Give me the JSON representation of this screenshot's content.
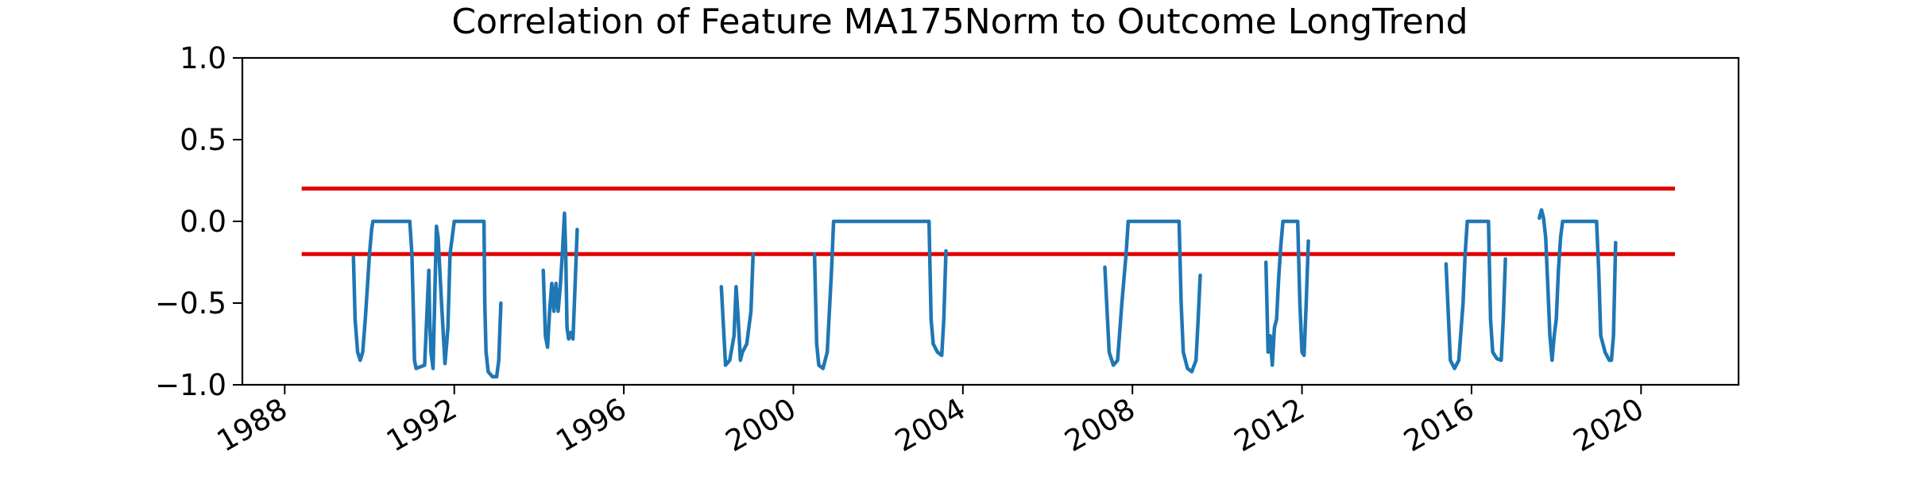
{
  "chart_data": {
    "type": "line",
    "title": "Correlation of Feature MA175Norm to Outcome LongTrend",
    "xlabel": "",
    "ylabel": "",
    "xlim": [
      1987.0,
      2022.3
    ],
    "ylim": [
      -1.0,
      1.0
    ],
    "grid": false,
    "legend": "none",
    "x_ticks": [
      1988,
      1992,
      1996,
      2000,
      2004,
      2008,
      2012,
      2016,
      2020
    ],
    "x_tick_labels": [
      "1988",
      "1992",
      "1996",
      "2000",
      "2004",
      "2008",
      "2012",
      "2016",
      "2020"
    ],
    "y_ticks": [
      -1.0,
      -0.5,
      0.0,
      0.5,
      1.0
    ],
    "y_tick_labels": [
      "−1.0",
      "−0.5",
      "0.0",
      "0.5",
      "1.0"
    ],
    "colors": {
      "series": "#1f77b4",
      "threshold": "#e00000",
      "axes": "#000000"
    },
    "reference_lines": [
      {
        "y": 0.2,
        "x_start": 1988.4,
        "x_end": 2020.8
      },
      {
        "y": -0.2,
        "x_start": 1988.4,
        "x_end": 2020.8
      }
    ],
    "series": [
      {
        "segments": [
          {
            "x": [
              1989.62,
              1989.66,
              1989.72,
              1989.78,
              1989.84,
              1989.9,
              1989.95,
              1990.0,
              1990.05,
              1990.08,
              1990.1,
              1990.2,
              1990.5,
              1990.8,
              1990.95,
              1991.0,
              1991.04,
              1991.06,
              1991.1,
              1991.3,
              1991.4,
              1991.42,
              1991.45,
              1991.5,
              1991.58,
              1991.62,
              1991.7,
              1991.78,
              1991.82,
              1991.85,
              1991.9,
              1992.0,
              1992.3,
              1992.6,
              1992.7,
              1992.72,
              1992.75,
              1992.8,
              1992.9,
              1993.0,
              1993.05,
              1993.1
            ],
            "y": [
              -0.22,
              -0.6,
              -0.8,
              -0.85,
              -0.8,
              -0.6,
              -0.4,
              -0.2,
              -0.05,
              0.0,
              0.0,
              0.0,
              0.0,
              0.0,
              0.0,
              -0.2,
              -0.6,
              -0.85,
              -0.9,
              -0.88,
              -0.3,
              -0.6,
              -0.8,
              -0.9,
              -0.03,
              -0.1,
              -0.5,
              -0.87,
              -0.75,
              -0.65,
              -0.2,
              0.0,
              0.0,
              0.0,
              0.0,
              -0.5,
              -0.8,
              -0.92,
              -0.95,
              -0.95,
              -0.85,
              -0.5
            ]
          },
          {
            "x": [
              1994.1,
              1994.15,
              1994.2,
              1994.25,
              1994.3,
              1994.35,
              1994.4,
              1994.45,
              1994.5,
              1994.55,
              1994.6,
              1994.63,
              1994.66,
              1994.7,
              1994.75,
              1994.8,
              1994.85,
              1994.9
            ],
            "y": [
              -0.3,
              -0.7,
              -0.77,
              -0.55,
              -0.38,
              -0.55,
              -0.38,
              -0.55,
              -0.4,
              -0.2,
              0.05,
              -0.2,
              -0.65,
              -0.72,
              -0.68,
              -0.72,
              -0.4,
              -0.05
            ]
          },
          {
            "x": [
              1998.3,
              1998.4,
              1998.5,
              1998.6,
              1998.65,
              1998.7,
              1998.75,
              1998.8,
              1998.9,
              1999.0,
              1999.05
            ],
            "y": [
              -0.4,
              -0.88,
              -0.85,
              -0.7,
              -0.4,
              -0.6,
              -0.85,
              -0.8,
              -0.75,
              -0.55,
              -0.2
            ]
          },
          {
            "x": [
              2000.5,
              2000.55,
              2000.6,
              2000.7,
              2000.8,
              2000.9,
              2000.95,
              2001.0,
              2003.2,
              2003.25,
              2003.3,
              2003.4,
              2003.5,
              2003.55,
              2003.6
            ],
            "y": [
              -0.2,
              -0.75,
              -0.88,
              -0.9,
              -0.8,
              -0.3,
              0.0,
              0.0,
              0.0,
              -0.6,
              -0.75,
              -0.8,
              -0.82,
              -0.6,
              -0.18
            ]
          },
          {
            "x": [
              2007.35,
              2007.45,
              2007.55,
              2007.65,
              2007.75,
              2007.85,
              2007.9,
              2007.95,
              2009.1,
              2009.15,
              2009.2,
              2009.3,
              2009.4,
              2009.5,
              2009.55,
              2009.6
            ],
            "y": [
              -0.28,
              -0.8,
              -0.88,
              -0.85,
              -0.5,
              -0.2,
              0.0,
              0.0,
              0.0,
              -0.5,
              -0.8,
              -0.9,
              -0.92,
              -0.85,
              -0.6,
              -0.33
            ]
          },
          {
            "x": [
              2011.15,
              2011.2,
              2011.25,
              2011.3,
              2011.35,
              2011.4,
              2011.45,
              2011.5,
              2011.55,
              2011.6,
              2011.9,
              2011.95,
              2012.0,
              2012.05,
              2012.1,
              2012.15
            ],
            "y": [
              -0.25,
              -0.8,
              -0.7,
              -0.88,
              -0.65,
              -0.6,
              -0.35,
              -0.15,
              0.0,
              0.0,
              0.0,
              -0.5,
              -0.8,
              -0.82,
              -0.5,
              -0.12
            ]
          },
          {
            "x": [
              2015.4,
              2015.5,
              2015.6,
              2015.7,
              2015.8,
              2015.85,
              2015.9,
              2015.95,
              2016.4,
              2016.45,
              2016.5,
              2016.6,
              2016.7,
              2016.75,
              2016.8
            ],
            "y": [
              -0.26,
              -0.85,
              -0.9,
              -0.85,
              -0.5,
              -0.2,
              0.0,
              0.0,
              0.0,
              -0.6,
              -0.8,
              -0.84,
              -0.85,
              -0.6,
              -0.23
            ]
          },
          {
            "x": [
              2017.6,
              2017.65,
              2017.7,
              2017.75,
              2017.8,
              2017.85,
              2017.9,
              2017.95,
              2018.0,
              2018.05,
              2018.1,
              2018.15,
              2018.2,
              2018.25,
              2018.95,
              2019.0,
              2019.05,
              2019.15,
              2019.25,
              2019.3,
              2019.35,
              2019.4
            ],
            "y": [
              0.02,
              0.07,
              0.02,
              -0.1,
              -0.4,
              -0.7,
              -0.85,
              -0.7,
              -0.6,
              -0.3,
              -0.1,
              0.0,
              0.0,
              0.0,
              0.0,
              -0.3,
              -0.7,
              -0.8,
              -0.85,
              -0.85,
              -0.7,
              -0.13
            ]
          }
        ]
      }
    ]
  }
}
